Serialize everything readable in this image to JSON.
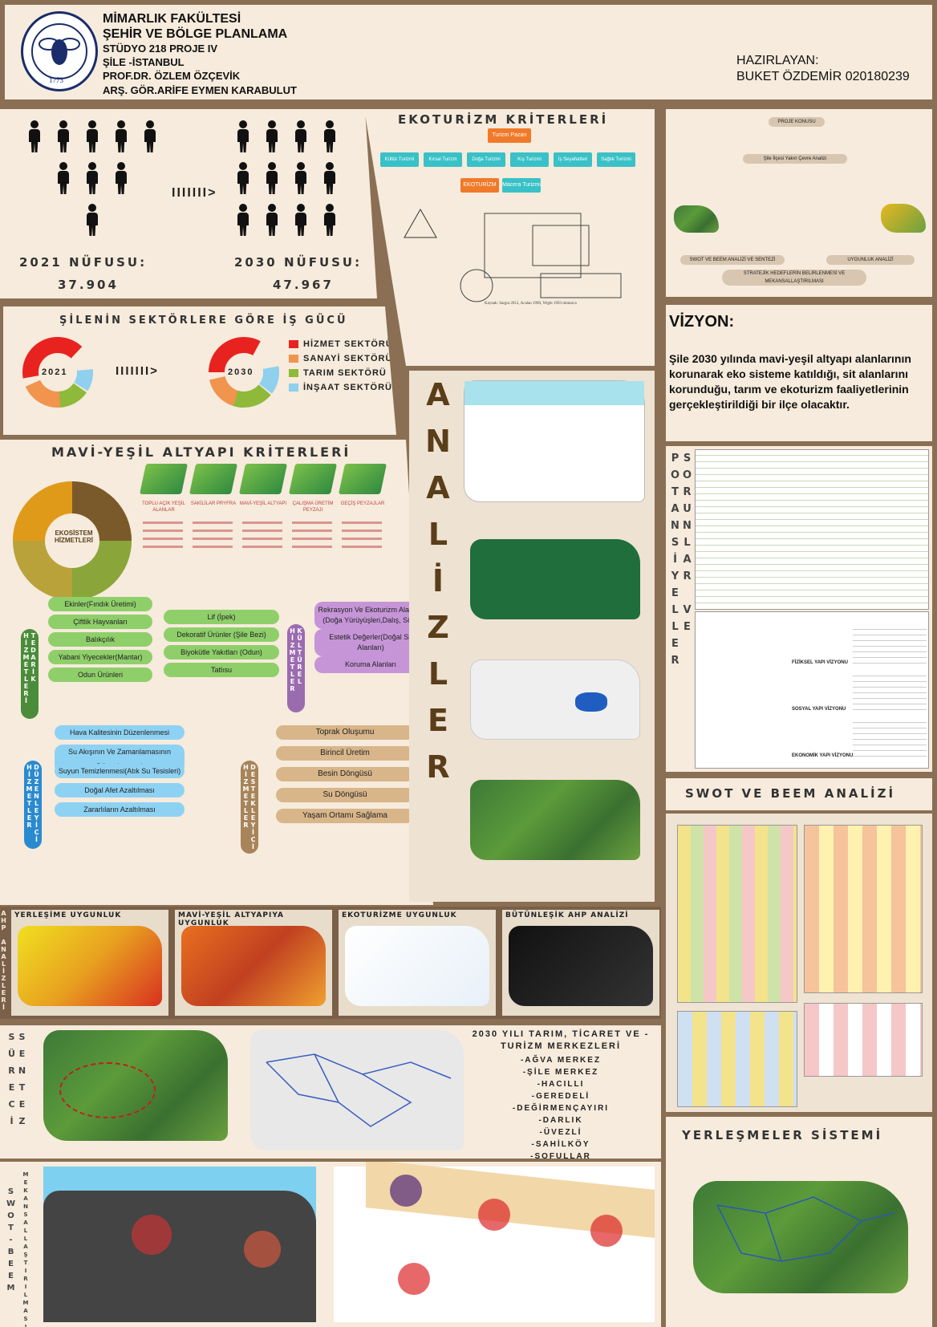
{
  "header": {
    "faculty": "MİMARLIK FAKÜLTESİ",
    "dept": "ŞEHİR VE BÖLGE PLANLAMA",
    "studio": "STÜDYO 218 PROJE IV",
    "place": "ŞİLE -İSTANBUL",
    "prof": "PROF.DR. ÖZLEM ÖZÇEVİK",
    "asst": "ARŞ. GÖR.ARİFE EYMEN KARABULUT",
    "prepared_label": "HAZIRLAYAN:",
    "author": "BUKET ÖZDEMİR 020180239",
    "seal_year": "1773",
    "seal_text": "İSTANBUL TEKNİK ÜNİVERSİTESİ"
  },
  "population": {
    "arrow": "IIIIIII>",
    "label_2021": "2021 NÜFUSU:",
    "value_2021": "37.904",
    "label_2030": "2030 NÜFUSU:",
    "value_2030": "47.967"
  },
  "workforce": {
    "title": "ŞİLENİN SEKTÖRLERE GÖRE İŞ GÜCÜ",
    "year_a": "2021",
    "year_b": "2030",
    "arrow": "IIIIIII>",
    "legend": [
      {
        "label": "HİZMET SEKTÖRÜ",
        "color": "#e8231f"
      },
      {
        "label": "SANAYİ SEKTÖRÜ",
        "color": "#f0944e"
      },
      {
        "label": "TARIM SEKTÖRÜ",
        "color": "#8fb93a"
      },
      {
        "label": "İNŞAAT SEKTÖRÜ",
        "color": "#8fd0ee"
      }
    ]
  },
  "ecotourism": {
    "title": "EKOTURİZM KRİTERLERİ",
    "root": "Turizm Pazarı",
    "types": [
      "Kültür Turizmi",
      "Kırsal Turizm",
      "Doğa Turizmi",
      "Kış Turizmi",
      "İş Seyahatleri",
      "Sağlık Turizmi"
    ],
    "eco": "EKOTURİZM",
    "adventure": "Macera Turizmi",
    "source": "Kaynak: Sargın 2012, Acalan 1990, Wight 1993 mimarca"
  },
  "flow": {
    "t1": "PROJE KONUSU",
    "t2": "Şile İlçesi Yakın Çevre Analizi",
    "t3": "SWOT VE BEEM ANALİZİ VE SENTEZİ",
    "t4": "UYGUNLUK ANALİZİ",
    "t5": "STRATEJİK HEDEFLERİN BELİRLENMESİ VE MEKANSALLAŞTIRILMASI"
  },
  "vision": {
    "title": "VİZYON:",
    "text": "Şile 2030 yılında mavi-yeşil altyapı alanlarının korunarak eko sisteme katıldığı, sit alanlarını korunduğu, tarım ve ekoturizm faaliyetlerinin gerçekleştirildiği bir ilçe olacaktır."
  },
  "analysis_title": "ANALİZLER",
  "problems_title": "SORUNLAR VE POTANSİYELLER",
  "problems_rows": [
    "FİZİKSEL YAPI VİZYONU",
    "SOSYAL YAPI VİZYONU",
    "EKONOMİK YAPI VİZYONU"
  ],
  "mavi_yesil": {
    "title": "MAVİ-YEŞİL ALTYAPI KRİTERLERİ",
    "wheel": "EKOSİSTEM HİZMETLERİ",
    "icons": [
      "TOPLU AÇIK YEŞİL ALANLAR",
      "SAKİLİLAR PRYFRA",
      "MAVİ-YEŞİL ALTYAPI",
      "ÇALIŞMA ÜRETİM PEYZAJI",
      "GEÇİŞ PEYZAJLAR"
    ]
  },
  "tedarik": {
    "label": "TEDARİK HİZMETLERİ",
    "items": [
      "Ekinler(Fındık Üretimi)",
      "Çiftlik Hayvanları",
      "Balıkçılık",
      "Yabani Yiyecekler(Mantar)",
      "Odun Ürünleri"
    ],
    "items2": [
      "Lif (İpek)",
      "Dekoratif Ürünler (Şile Bezi)",
      "Biyokütle Yakıtları (Odun)",
      "Tatlısu"
    ]
  },
  "kulturel": {
    "label": "KÜLTÜREL HİZMETLER",
    "items": [
      "Rekrasyon Ve Ekoturizm Alanları (Doğa Yürüyüşleri,Dalış, Sörf)",
      "Estetik Değerler(Doğal Sit Alanları)",
      "Koruma Alanları"
    ]
  },
  "duzenleyici": {
    "label": "DÜZENLEYİCİ HİZMETLER",
    "items": [
      "Hava Kalitesinin Düzenlenmesi",
      "Su Akışının Ve Zamanlamasının Düzenlenmesi",
      "Suyun Temizlenmesi(Atık Su Tesisleri)",
      "Doğal Afet Azaltılması",
      "Zararlıların Azaltılması"
    ]
  },
  "destekleyici": {
    "label": "DESTEKLEYİCİ HİZMETLER",
    "items": [
      "Toprak Oluşumu",
      "Birincil Üretim",
      "Besin Döngüsü",
      "Su Döngüsü",
      "Yaşam Ortamı Sağlama"
    ]
  },
  "ahp": {
    "side": "AHP ANALİZLERİ",
    "titles": [
      "YERLEŞİME UYGUNLUK",
      "MAVİ-YEŞİL ALTYAPIYA UYGUNLUK",
      "EKOTURİZME UYGUNLUK",
      "BÜTÜNLEŞİK AHP ANALİZİ"
    ]
  },
  "swot": {
    "title": "SWOT VE BEEM ANALİZİ"
  },
  "sentez": {
    "side": "SENTEZ SÜRECİ",
    "centers_title": "2030 YILI TARIM, TİCARET VE -TURİZM MERKEZLERİ",
    "centers": [
      "-AĞVA MERKEZ",
      "-ŞİLE MERKEZ",
      "-HACILLI",
      "-GEREDELİ",
      "-DEĞİRMENÇAYIRI",
      "-DARLIK",
      "-ÜVEZLİ",
      "-SAHİLKÖY",
      "-SOFULLAR"
    ]
  },
  "swot_beem_side": "SWOT-BEEM",
  "mekan_side": "MEKANSALLAŞTIRILMASI",
  "settlements": {
    "title": "YERLEŞMELER SİSTEMİ"
  }
}
